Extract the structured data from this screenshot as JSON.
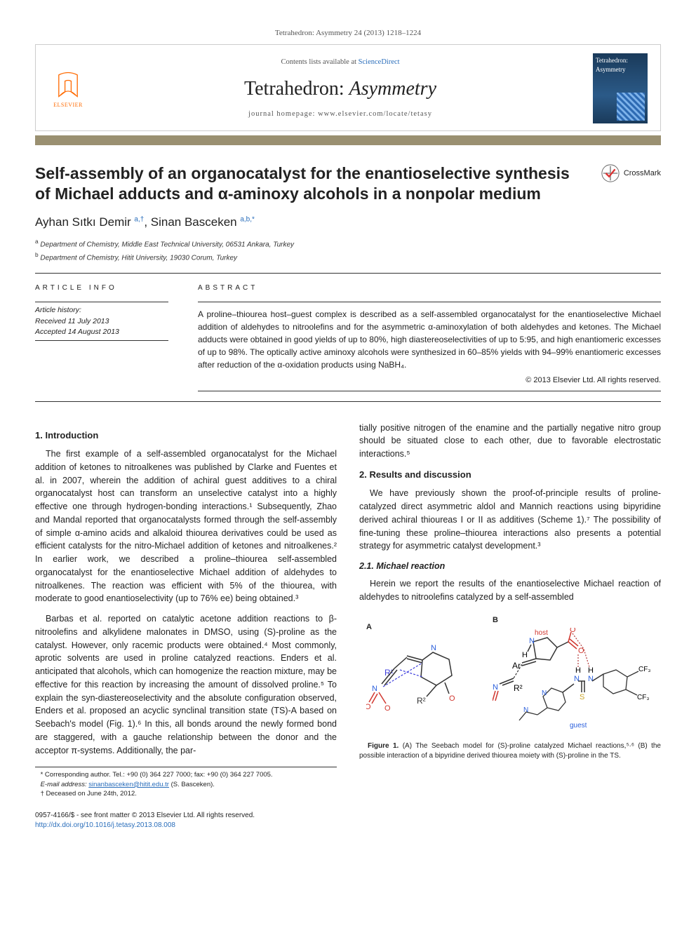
{
  "journal_ref": "Tetrahedron: Asymmetry 24 (2013) 1218–1224",
  "publisher": {
    "name": "ELSEVIER"
  },
  "header": {
    "contents_prefix": "Contents lists available at ",
    "contents_link": "ScienceDirect",
    "journal_name_main": "Tetrahedron: ",
    "journal_name_italic": "Asymmetry",
    "homepage_label": "journal homepage: ",
    "homepage_url": "www.elsevier.com/locate/tetasy"
  },
  "cover": {
    "title": "Tetrahedron: Asymmetry"
  },
  "title": "Self-assembly of an organocatalyst for the enantioselective synthesis of Michael adducts and α-aminoxy alcohols in a nonpolar medium",
  "crossmark": "CrossMark",
  "authors_html": "Ayhan Sıtkı Demir <a href='#'><sup>a,†</sup></a>, Sinan Basceken <a href='#'><sup>a,b,</sup></a><a href='#'><sup>*</sup></a>",
  "affiliations": [
    {
      "marker": "a",
      "text": "Department of Chemistry, Middle East Technical University, 06531 Ankara, Turkey"
    },
    {
      "marker": "b",
      "text": "Department of Chemistry, Hitit University, 19030 Corum, Turkey"
    }
  ],
  "article_info": {
    "heading": "ARTICLE INFO",
    "history_label": "Article history:",
    "received": "Received 11 July 2013",
    "accepted": "Accepted 14 August 2013"
  },
  "abstract": {
    "heading": "ABSTRACT",
    "text": "A proline–thiourea host–guest complex is described as a self-assembled organocatalyst for the enantioselective Michael addition of aldehydes to nitroolefins and for the asymmetric α-aminoxylation of both aldehydes and ketones. The Michael adducts were obtained in good yields of up to 80%, high diastereoselectivities of up to 5:95, and high enantiomeric excesses of up to 98%. The optically active aminoxy alcohols were synthesized in 60–85% yields with 94–99% enantiomeric excesses after reduction of the α-oxidation products using NaBH₄.",
    "copyright": "© 2013 Elsevier Ltd. All rights reserved."
  },
  "sections": {
    "intro_h": "1. Introduction",
    "intro_p1": "The first example of a self-assembled organocatalyst for the Michael addition of ketones to nitroalkenes was published by Clarke and Fuentes et al. in 2007, wherein the addition of achiral guest additives to a chiral organocatalyst host can transform an unselective catalyst into a highly effective one through hydrogen-bonding interactions.¹ Subsequently, Zhao and Mandal reported that organocatalysts formed through the self-assembly of simple α-amino acids and alkaloid thiourea derivatives could be used as efficient catalysts for the nitro-Michael addition of ketones and nitroalkenes.² In earlier work, we described a proline–thiourea self-assembled organocatalyst for the enantioselective Michael addition of aldehydes to nitroalkenes. The reaction was efficient with 5% of the thiourea, with moderate to good enantioselectivity (up to 76% ee) being obtained.³",
    "intro_p2": "Barbas et al. reported on catalytic acetone addition reactions to β-nitroolefins and alkylidene malonates in DMSO, using (S)-proline as the catalyst. However, only racemic products were obtained.⁴ Most commonly, aprotic solvents are used in proline catalyzed reactions. Enders et al. anticipated that alcohols, which can homogenize the reaction mixture, may be effective for this reaction by increasing the amount of dissolved proline.⁵ To explain the syn-diastereoselectivity and the absolute configuration observed, Enders et al. proposed an acyclic synclinal transition state (TS)-A based on Seebach's model (Fig. 1).⁶ In this, all bonds around the newly formed bond are staggered, with a gauche relationship between the donor and the acceptor π-systems. Additionally, the par-",
    "col2_p1": "tially positive nitrogen of the enamine and the partially negative nitro group should be situated close to each other, due to favorable electrostatic interactions.⁵",
    "results_h": "2. Results and discussion",
    "results_p1": "We have previously shown the proof-of-principle results of proline-catalyzed direct asymmetric aldol and Mannich reactions using bipyridine derived achiral thioureas I or II as additives (Scheme 1).⁷ The possibility of fine-tuning these proline–thiourea interactions also presents a potential strategy for asymmetric catalyst development.³",
    "michael_h": "2.1. Michael reaction",
    "michael_p1": "Herein we report the results of the enantioselective Michael reaction of aldehydes to nitroolefins catalyzed by a self-assembled"
  },
  "figure1": {
    "panelA": "A",
    "panelB": "B",
    "host_label": "host",
    "guest_label": "guest",
    "caption_bold": "Figure 1.",
    "caption_text": " (A) The Seebach model for (S)-proline catalyzed Michael reactions,⁵·⁶ (B) the possible interaction of a bipyridine derived thiourea moiety with (S)-proline in the TS.",
    "colors": {
      "C": "#333333",
      "N": "#2b5fdc",
      "O": "#d1372f",
      "S": "#caa62a",
      "H_bond": "#b23a3a",
      "Ar": "#1a1a1a",
      "R": "#4040dd"
    }
  },
  "footnotes": {
    "corr": "* Corresponding author. Tel.: +90 (0) 364 227 7000; fax: +90 (0) 364 227 7005.",
    "email_label": "E-mail address: ",
    "email": "sinanbasceken@hitit.edu.tr",
    "email_who": "(S. Basceken).",
    "deceased": "† Deceased on June 24th, 2012."
  },
  "doi": {
    "line1": "0957-4166/$ - see front matter © 2013 Elsevier Ltd. All rights reserved.",
    "line2_label": "http://dx.doi.org/",
    "line2_doi": "10.1016/j.tetasy.2013.08.008"
  }
}
